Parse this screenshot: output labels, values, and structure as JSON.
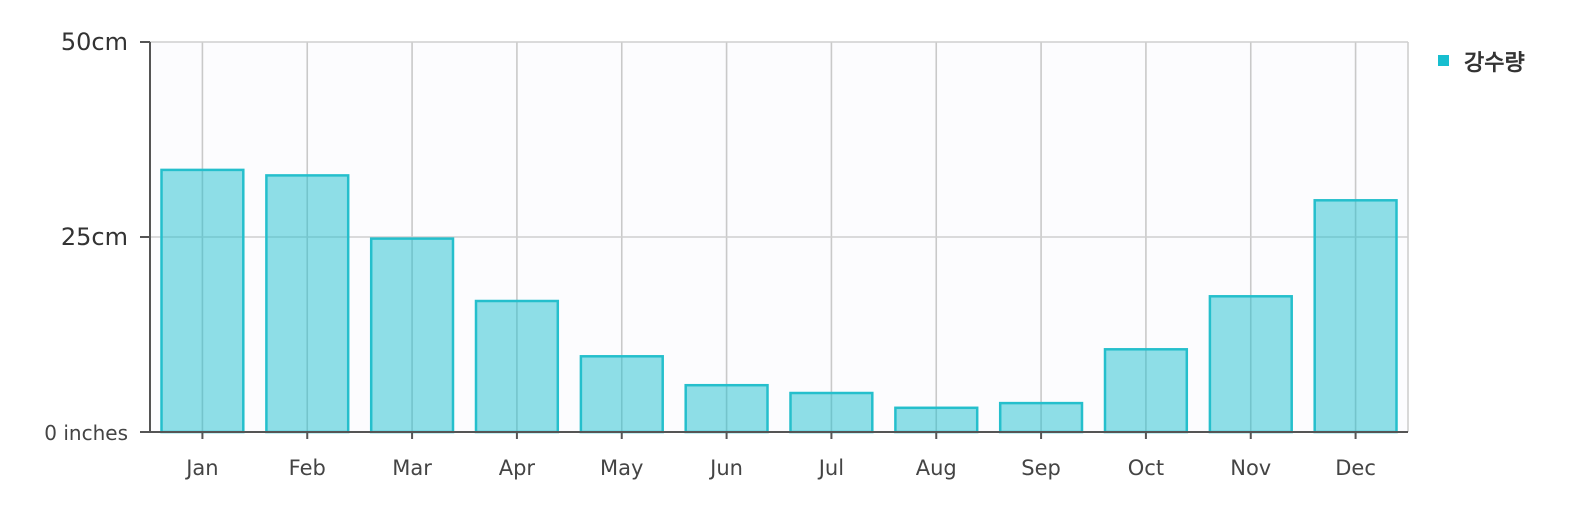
{
  "chart_data": {
    "type": "bar",
    "title": "",
    "xlabel": "",
    "ylabel": "",
    "categories": [
      "Jan",
      "Feb",
      "Mar",
      "Apr",
      "May",
      "Jun",
      "Jul",
      "Aug",
      "Sep",
      "Oct",
      "Nov",
      "Dec"
    ],
    "series": [
      {
        "name": "강수량",
        "color": "#17becf",
        "values": [
          33.6,
          32.9,
          24.8,
          16.8,
          9.7,
          6.0,
          5.0,
          3.1,
          3.7,
          10.6,
          17.4,
          29.7
        ]
      }
    ],
    "ylim": [
      0,
      50
    ],
    "yticks": [
      {
        "value": 0,
        "label": "0 inches"
      },
      {
        "value": 25,
        "label": "25cm"
      },
      {
        "value": 50,
        "label": "50cm"
      }
    ],
    "grid": true,
    "legend_position": "top-right"
  }
}
